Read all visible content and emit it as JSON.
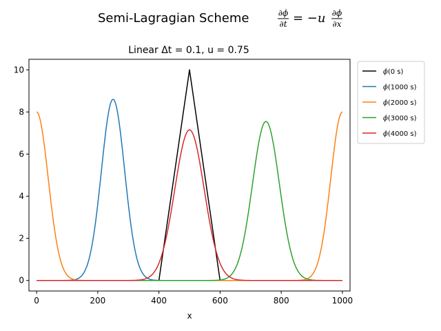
{
  "chart_data": {
    "type": "line",
    "suptitle": {
      "text": "Semi-Lagragian Scheme",
      "equation": {
        "lhs_num": "∂ϕ",
        "lhs_den": "∂t",
        "eq": "= −u",
        "rhs_num": "∂ϕ",
        "rhs_den": "∂x"
      }
    },
    "title": "Linear Δt =  0.1, u =  0.75",
    "xlabel": "x",
    "ylabel": "",
    "xlim": [
      -25,
      1025
    ],
    "ylim": [
      -0.5,
      10.5
    ],
    "x_ticks": [
      0,
      200,
      400,
      600,
      800,
      1000
    ],
    "y_ticks": [
      0,
      2,
      4,
      6,
      8,
      10
    ],
    "grid": false,
    "legend_position": "outside-top-right",
    "series": [
      {
        "name": "ϕ(0 s)",
        "label_main": "ϕ",
        "label_rest": "(0 s)",
        "color": "#000000",
        "shape": "triangle",
        "params": {
          "x_start": 400,
          "peak_x": 500,
          "x_end": 600,
          "peak": 10
        },
        "x_range": [
          0,
          1000
        ]
      },
      {
        "name": "ϕ(1000 s)",
        "label_main": "ϕ",
        "label_rest": "(1000 s)",
        "color": "#1f77b4",
        "shape": "gaussian",
        "params": {
          "center": 250,
          "peak": 8.6,
          "sigma": 38
        },
        "x_range": [
          0,
          1000
        ]
      },
      {
        "name": "ϕ(2000 s)",
        "label_main": "ϕ",
        "label_rest": "(2000 s)",
        "color": "#ff7f0e",
        "shape": "gaussian_periodic",
        "params": {
          "centers": [
            0,
            1000
          ],
          "peak": 8.0,
          "sigma": 38
        },
        "x_range": [
          0,
          1000
        ]
      },
      {
        "name": "ϕ(3000 s)",
        "label_main": "ϕ",
        "label_rest": "(3000 s)",
        "color": "#2ca02c",
        "shape": "gaussian",
        "params": {
          "center": 750,
          "peak": 7.55,
          "sigma": 44
        },
        "x_range": [
          0,
          1000
        ]
      },
      {
        "name": "ϕ(4000 s)",
        "label_main": "ϕ",
        "label_rest": "(4000 s)",
        "color": "#d62728",
        "shape": "gaussian",
        "params": {
          "center": 500,
          "peak": 7.15,
          "sigma": 48
        },
        "x_range": [
          0,
          1000
        ]
      }
    ]
  }
}
